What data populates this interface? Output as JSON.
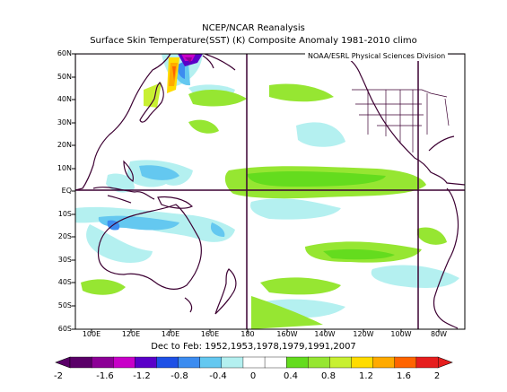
{
  "header": {
    "title": "NCEP/NCAR Reanalysis",
    "subtitle": "Surface Skin Temperature(SST) (K) Composite Anomaly 1981-2010 climo"
  },
  "credit": "NOAA/ESRL Physical Sciences Division",
  "axes": {
    "lat_labels": [
      "60N",
      "50N",
      "40N",
      "30N",
      "20N",
      "10N",
      "EQ",
      "10S",
      "20S",
      "30S",
      "40S",
      "50S",
      "60S"
    ],
    "lon_labels": [
      "100E",
      "120E",
      "140E",
      "160E",
      "180",
      "160W",
      "140W",
      "120W",
      "100W",
      "80W"
    ]
  },
  "period_label": "Dec to Feb: 1952,1953,1978,1979,1991,2007",
  "colorbar": {
    "labels": [
      "-2",
      "-1.6",
      "-1.2",
      "-0.8",
      "-0.4",
      "0",
      "0.4",
      "0.8",
      "1.2",
      "1.6",
      "2"
    ],
    "colors": [
      "#5a0068",
      "#8c0096",
      "#c800c8",
      "#5a00c8",
      "#1e50e6",
      "#3c8cf0",
      "#64c8f0",
      "#b4f0f0",
      "#ffffff",
      "#ffffff",
      "#64dc1e",
      "#96e632",
      "#c8f032",
      "#ffdc00",
      "#ffaa00",
      "#ff6400",
      "#e61e1e"
    ]
  },
  "map": {
    "lon_range": [
      90,
      300
    ],
    "lat_range": [
      -60,
      60
    ]
  }
}
